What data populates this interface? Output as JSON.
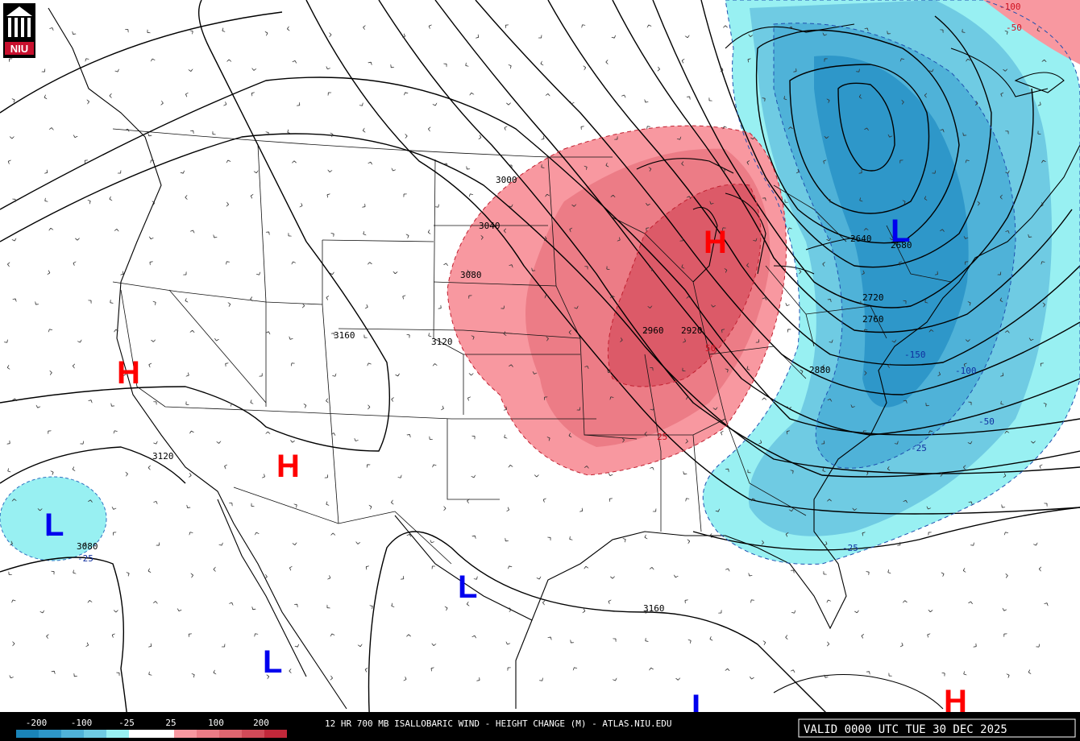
{
  "footer": {
    "title": "12 HR 700 MB ISALLOBARIC WIND - HEIGHT CHANGE (M) - ATLAS.NIU.EDU",
    "valid": "VALID 0000 UTC TUE 30 DEC 2025"
  },
  "logo": {
    "text": "NIU",
    "color": "#c8102e"
  },
  "legend": {
    "labels": [
      "-200",
      "-100",
      "-25",
      "25",
      "100",
      "200"
    ],
    "colors": [
      "#1a84b8",
      "#2e97c9",
      "#4fb2d8",
      "#6fcbe3",
      "#98f0f2",
      "#ffffff",
      "#ffffff",
      "#f898a0",
      "#ec7c86",
      "#e06670",
      "#d24a58",
      "#c2283a"
    ]
  },
  "colors": {
    "rise_light": "#f898a0",
    "rise_mid": "#ec7c86",
    "rise_dark": "#dc5a68",
    "fall_light": "#98f0f2",
    "fall_mid": "#6fcbe3",
    "fall_dark": "#4fb2d8",
    "fall_darkest": "#2e97c9",
    "high": "#ff0000",
    "low": "#0000ee"
  },
  "height_labels": [
    "3000",
    "3040",
    "3080",
    "3160",
    "3120",
    "2960",
    "2920",
    "2640",
    "2680",
    "2720",
    "2760",
    "2880",
    "3120",
    "3080",
    "3160"
  ],
  "change_labels": [
    "50",
    "25",
    "-150",
    "-100",
    "-50",
    "-25",
    "-25",
    "-100",
    "-50",
    "-25"
  ],
  "centers": [
    {
      "type": "H",
      "name": "high-center-great-lakes"
    },
    {
      "type": "H",
      "name": "high-center-california"
    },
    {
      "type": "H",
      "name": "high-center-southwest"
    },
    {
      "type": "H",
      "name": "high-center-caribbean"
    },
    {
      "type": "L",
      "name": "low-center-new-york"
    },
    {
      "type": "L",
      "name": "low-center-pacific"
    },
    {
      "type": "L",
      "name": "low-center-mexico"
    },
    {
      "type": "L",
      "name": "low-center-baja"
    },
    {
      "type": "L",
      "name": "low-center-gulf"
    }
  ],
  "wind_symbol": "^"
}
